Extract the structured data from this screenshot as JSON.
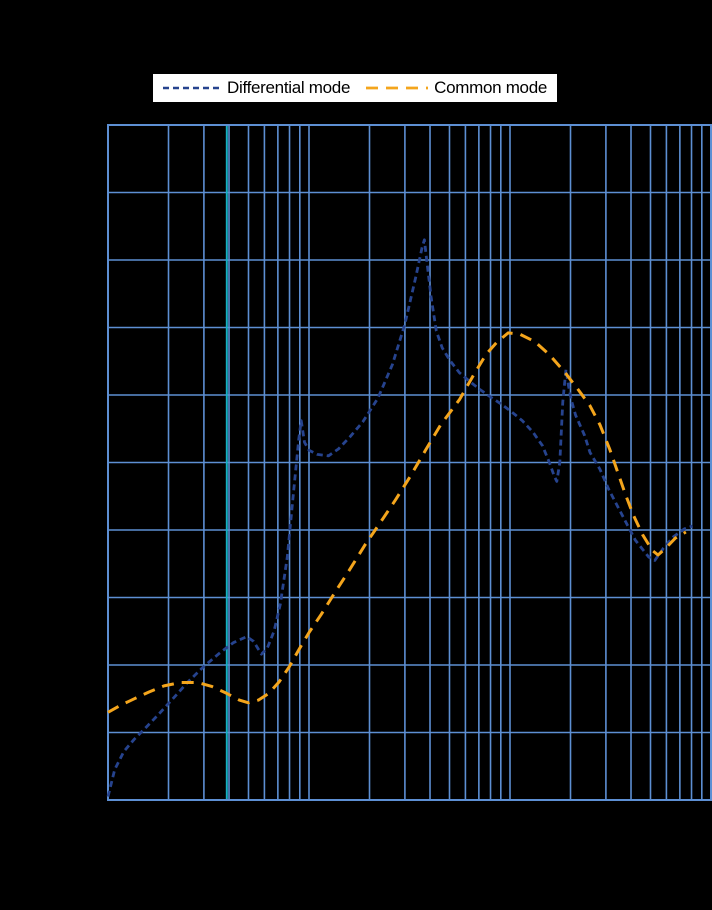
{
  "page": {
    "background": "#000000"
  },
  "legend": {
    "position": "top"
  },
  "chart_data": {
    "type": "line",
    "title": "",
    "x_scale": "log",
    "y_scale": "linear",
    "xlim": [
      1,
      1000
    ],
    "ylim": [
      0,
      10
    ],
    "grid": true,
    "grid_color": "#5d8fd3",
    "highlight_gridline_x": 3.9,
    "highlight_color": "#16b1c3",
    "background": "#000000",
    "legend_position": "top",
    "x_gridlines": [
      1,
      2,
      3,
      4,
      5,
      6,
      7,
      8,
      9,
      10,
      20,
      30,
      40,
      50,
      60,
      70,
      80,
      90,
      100,
      200,
      300,
      400,
      500,
      600,
      700,
      800,
      900,
      1000
    ],
    "y_gridlines": [
      0,
      1,
      2,
      3,
      4,
      5,
      6,
      7,
      8,
      9,
      10
    ],
    "series": [
      {
        "name": "Differential mode",
        "key": "differential-mode",
        "color": "#26438e",
        "dash": "6 4",
        "points": [
          [
            1,
            0.05
          ],
          [
            1.08,
            0.45
          ],
          [
            1.2,
            0.72
          ],
          [
            1.35,
            0.9
          ],
          [
            1.55,
            1.08
          ],
          [
            1.8,
            1.28
          ],
          [
            2.1,
            1.5
          ],
          [
            2.5,
            1.75
          ],
          [
            3,
            1.98
          ],
          [
            3.6,
            2.18
          ],
          [
            4.2,
            2.33
          ],
          [
            4.9,
            2.42
          ],
          [
            5.3,
            2.35
          ],
          [
            5.8,
            2.16
          ],
          [
            6.2,
            2.25
          ],
          [
            6.7,
            2.5
          ],
          [
            7.2,
            2.9
          ],
          [
            7.8,
            3.6
          ],
          [
            8.4,
            4.6
          ],
          [
            8.9,
            5.35
          ],
          [
            9.15,
            5.62
          ],
          [
            9.5,
            5.3
          ],
          [
            10,
            5.18
          ],
          [
            11,
            5.12
          ],
          [
            12.5,
            5.1
          ],
          [
            14,
            5.2
          ],
          [
            16,
            5.38
          ],
          [
            18.5,
            5.6
          ],
          [
            22,
            5.95
          ],
          [
            26,
            6.45
          ],
          [
            30,
            7.05
          ],
          [
            34,
            7.75
          ],
          [
            36.5,
            8.18
          ],
          [
            37.5,
            8.3
          ],
          [
            38.5,
            8
          ],
          [
            40.5,
            7.45
          ],
          [
            43,
            6.95
          ],
          [
            46,
            6.7
          ],
          [
            50,
            6.52
          ],
          [
            56,
            6.33
          ],
          [
            63,
            6.2
          ],
          [
            71,
            6.08
          ],
          [
            80,
            5.97
          ],
          [
            90,
            5.87
          ],
          [
            102,
            5.75
          ],
          [
            115,
            5.62
          ],
          [
            130,
            5.45
          ],
          [
            145,
            5.25
          ],
          [
            157,
            5
          ],
          [
            166,
            4.8
          ],
          [
            171,
            4.72
          ],
          [
            177,
            5
          ],
          [
            183,
            5.9
          ],
          [
            190,
            6.38
          ],
          [
            195,
            6.15
          ],
          [
            202,
            5.92
          ],
          [
            212,
            5.7
          ],
          [
            235,
            5.4
          ],
          [
            250,
            5.15
          ],
          [
            280,
            4.9
          ],
          [
            310,
            4.6
          ],
          [
            350,
            4.3
          ],
          [
            420,
            3.85
          ],
          [
            490,
            3.6
          ],
          [
            525,
            3.55
          ],
          [
            580,
            3.73
          ],
          [
            650,
            3.9
          ],
          [
            740,
            4.02
          ],
          [
            810,
            4.06
          ]
        ]
      },
      {
        "name": "Common mode",
        "key": "common-mode",
        "color": "#f4a51c",
        "dash": "12 8",
        "points": [
          [
            1,
            1.3
          ],
          [
            1.15,
            1.4
          ],
          [
            1.35,
            1.5
          ],
          [
            1.6,
            1.6
          ],
          [
            1.9,
            1.69
          ],
          [
            2.3,
            1.74
          ],
          [
            2.8,
            1.74
          ],
          [
            3.3,
            1.68
          ],
          [
            3.9,
            1.58
          ],
          [
            4.5,
            1.48
          ],
          [
            5,
            1.44
          ],
          [
            5.6,
            1.48
          ],
          [
            6.3,
            1.58
          ],
          [
            7.1,
            1.75
          ],
          [
            8,
            1.98
          ],
          [
            9,
            2.25
          ],
          [
            10,
            2.48
          ],
          [
            11.5,
            2.75
          ],
          [
            13.5,
            3.08
          ],
          [
            16,
            3.42
          ],
          [
            19,
            3.78
          ],
          [
            22.5,
            4.1
          ],
          [
            27,
            4.45
          ],
          [
            32,
            4.8
          ],
          [
            38,
            5.18
          ],
          [
            45,
            5.55
          ],
          [
            56,
            5.93
          ],
          [
            66,
            6.3
          ],
          [
            76,
            6.6
          ],
          [
            86,
            6.78
          ],
          [
            98,
            6.92
          ],
          [
            112,
            6.9
          ],
          [
            133,
            6.79
          ],
          [
            158,
            6.59
          ],
          [
            187,
            6.34
          ],
          [
            216,
            6.1
          ],
          [
            249,
            5.85
          ],
          [
            280,
            5.56
          ],
          [
            314,
            5.19
          ],
          [
            343,
            4.86
          ],
          [
            376,
            4.52
          ],
          [
            411,
            4.22
          ],
          [
            457,
            3.93
          ],
          [
            510,
            3.7
          ],
          [
            545,
            3.63
          ],
          [
            595,
            3.73
          ],
          [
            665,
            3.88
          ],
          [
            750,
            3.97
          ]
        ]
      }
    ]
  }
}
